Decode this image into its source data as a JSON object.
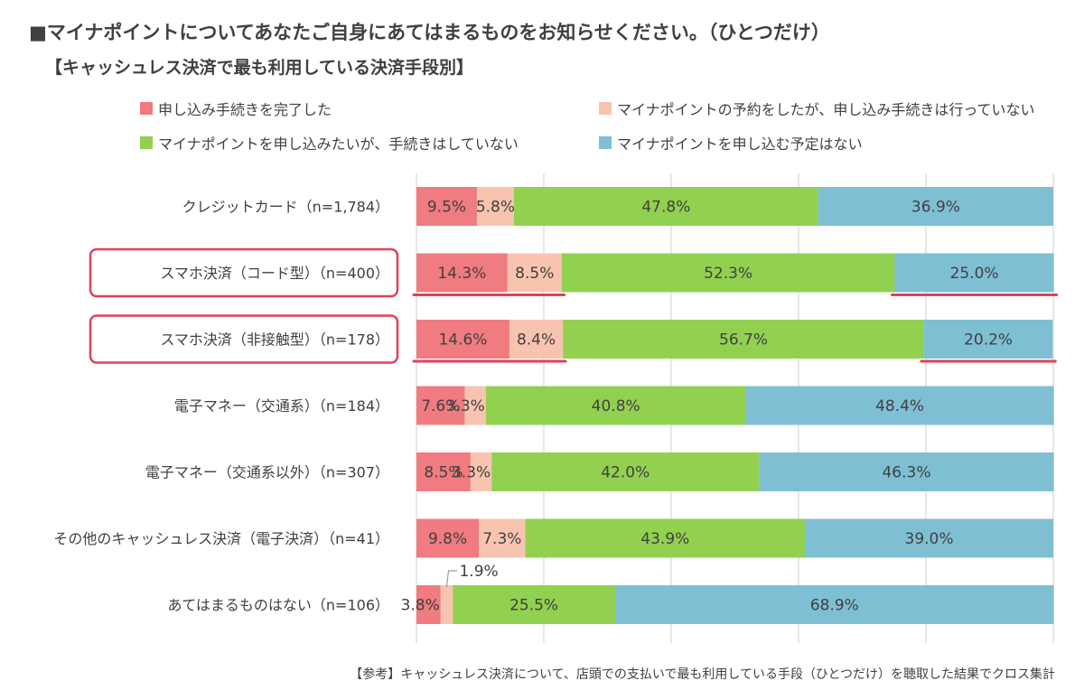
{
  "title": "■マイナポイントについてあなたご自身にあてはまるものをお知らせください。（ひとつだけ）",
  "subtitle": "【キャッシュレス決済で最も利用している決済手段別】",
  "footnote": "【参考】キャッシュレス決済について、店頭での支払いで最も利用している手段（ひとつだけ）を聴取した結果でクロス集計",
  "colors": {
    "applied": "#f07b80",
    "reserved": "#f8c4b0",
    "want": "#92d050",
    "no_plan": "#7fbfd4",
    "highlight": "#e0405a",
    "grid": "#cfcfcf"
  },
  "legend": [
    {
      "label": "申し込み手続きを完了した",
      "color_key": "applied"
    },
    {
      "label": "マイナポイントの予約をしたが、申し込み手続きは行っていない",
      "color_key": "reserved"
    },
    {
      "label": "マイナポイントを申し込みたいが、手続きはしていない",
      "color_key": "want"
    },
    {
      "label": "マイナポイントを申し込む予定はない",
      "color_key": "no_plan"
    }
  ],
  "chart_data": {
    "type": "bar",
    "orientation": "horizontal",
    "stacked": true,
    "percent_scale": true,
    "xlim": [
      0,
      100
    ],
    "grid": true,
    "legend_position": "top",
    "categories": [
      "クレジットカード（n=1,784）",
      "スマホ決済（コード型）（n=400）",
      "スマホ決済（非接触型）（n=178）",
      "電子マネー（交通系）（n=184）",
      "電子マネー（交通系以外）（n=307）",
      "その他のキャッシュレス決済（電子決済）（n=41）",
      "あてはまるものはない（n=106）"
    ],
    "highlighted_categories": [
      1,
      2
    ],
    "series": [
      {
        "name": "申し込み手続きを完了した",
        "color_key": "applied",
        "values": [
          9.5,
          14.3,
          14.6,
          7.6,
          8.5,
          9.8,
          3.8
        ],
        "underline": [
          1,
          2
        ]
      },
      {
        "name": "マイナポイントの予約をしたが、申し込み手続きは行っていない",
        "color_key": "reserved",
        "values": [
          5.8,
          8.5,
          8.4,
          3.3,
          3.3,
          7.3,
          1.9
        ],
        "underline": [
          1,
          2
        ]
      },
      {
        "name": "マイナポイントを申し込みたいが、手続きはしていない",
        "color_key": "want",
        "values": [
          47.8,
          52.3,
          56.7,
          40.8,
          42.0,
          43.9,
          25.5
        ],
        "underline": []
      },
      {
        "name": "マイナポイントを申し込む予定はない",
        "color_key": "no_plan",
        "values": [
          36.9,
          25.0,
          20.2,
          48.4,
          46.3,
          39.0,
          68.9
        ],
        "underline": [
          1,
          2
        ]
      }
    ],
    "data_labels": [
      [
        "9.5%",
        "5.8%",
        "47.8%",
        "36.9%"
      ],
      [
        "14.3%",
        "8.5%",
        "52.3%",
        "25.0%"
      ],
      [
        "14.6%",
        "8.4%",
        "56.7%",
        "20.2%"
      ],
      [
        "7.6%",
        "3.3%",
        "40.8%",
        "48.4%"
      ],
      [
        "8.5%",
        "3.3%",
        "42.0%",
        "46.3%"
      ],
      [
        "9.8%",
        "7.3%",
        "43.9%",
        "39.0%"
      ],
      [
        "3.8%",
        "1.9%",
        "25.5%",
        "68.9%"
      ]
    ],
    "callout_labels": [
      {
        "category_index": 6,
        "series_index": 1
      }
    ]
  }
}
